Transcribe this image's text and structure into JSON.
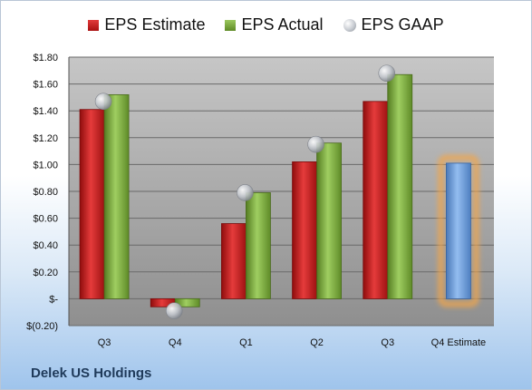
{
  "chart_data": {
    "type": "bar",
    "categories": [
      "Q3",
      "Q4",
      "Q1",
      "Q2",
      "Q3",
      "Q4 Estimate"
    ],
    "series": [
      {
        "name": "EPS Estimate",
        "values": [
          1.41,
          -0.06,
          0.56,
          1.02,
          1.47,
          null
        ],
        "color": "#c81e1e"
      },
      {
        "name": "EPS Actual",
        "values": [
          1.52,
          -0.06,
          0.79,
          1.16,
          1.67,
          null
        ],
        "color": "#7aa83e"
      },
      {
        "name": "EPS GAAP",
        "values": [
          1.47,
          -0.09,
          0.79,
          1.15,
          1.68,
          null
        ],
        "color": "#b8bcc2"
      },
      {
        "name": "",
        "values": [
          null,
          null,
          null,
          null,
          null,
          1.01
        ],
        "color": "#6f9fdb"
      }
    ],
    "ylim": [
      -0.2,
      1.8
    ],
    "yticks": [
      -0.2,
      0,
      0.2,
      0.4,
      0.6,
      0.8,
      1.0,
      1.2,
      1.4,
      1.6,
      1.8
    ],
    "ytick_labels": [
      "$(0.20)",
      "$-",
      "$0.20",
      "$0.40",
      "$0.60",
      "$0.80",
      "$1.00",
      "$1.20",
      "$1.40",
      "$1.60",
      "$1.80"
    ],
    "grid": true,
    "legend_position": "top",
    "highlight_category": "Q4 Estimate",
    "highlight_color": "#f2a64b"
  },
  "company": "Delek US Holdings"
}
